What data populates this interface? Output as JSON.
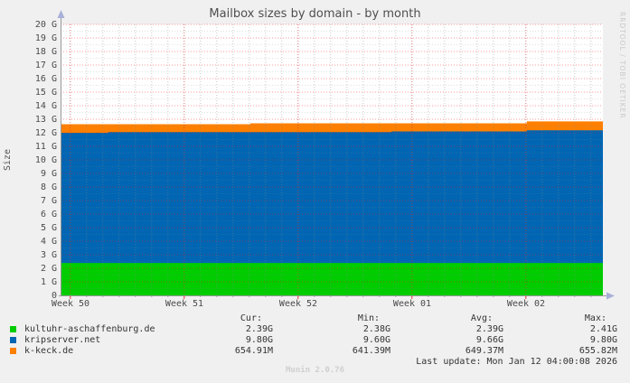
{
  "watermark": "RRDTOOL / TOBI OETIKER",
  "version": "Munin 2.0.76",
  "chart_data": {
    "type": "area",
    "stacked": true,
    "title": "Mailbox sizes by domain - by month",
    "ylabel": "Size",
    "ylim": [
      0,
      20
    ],
    "y_unit": "G",
    "grid": "on",
    "y_ticks": [
      "0",
      "1 G",
      "2 G",
      "3 G",
      "4 G",
      "5 G",
      "6 G",
      "7 G",
      "8 G",
      "9 G",
      "10 G",
      "11 G",
      "12 G",
      "13 G",
      "14 G",
      "15 G",
      "16 G",
      "17 G",
      "18 G",
      "19 G",
      "20 G"
    ],
    "x_ticks": [
      {
        "label": "Week 50",
        "pos": 0.018
      },
      {
        "label": "Week 51",
        "pos": 0.228
      },
      {
        "label": "Week 52",
        "pos": 0.438
      },
      {
        "label": "Week 01",
        "pos": 0.648
      },
      {
        "label": "Week 02",
        "pos": 0.858
      }
    ],
    "minor_x_step": 0.03,
    "series": [
      {
        "name": "kultuhr-aschaffenburg.de",
        "color": "#00cc00",
        "cum_top_steps": [
          [
            0,
            2.39
          ],
          [
            1,
            2.39
          ]
        ]
      },
      {
        "name": "kripserver.net",
        "color": "#0066b3",
        "cum_top_steps": [
          [
            0,
            11.99
          ],
          [
            0.088,
            11.99
          ],
          [
            0.088,
            12.05
          ],
          [
            0.61,
            12.05
          ],
          [
            0.61,
            12.1
          ],
          [
            0.86,
            12.1
          ],
          [
            0.86,
            12.19
          ],
          [
            1,
            12.19
          ]
        ]
      },
      {
        "name": "k-keck.de",
        "color": "#ff8000",
        "cum_top_steps": [
          [
            0,
            12.63
          ],
          [
            0.35,
            12.63
          ],
          [
            0.35,
            12.7
          ],
          [
            0.86,
            12.7
          ],
          [
            0.86,
            12.84
          ],
          [
            1,
            12.84
          ]
        ]
      }
    ],
    "legend": {
      "columns": [
        "Cur:",
        "Min:",
        "Avg:",
        "Max:"
      ],
      "rows": [
        {
          "label": "kultuhr-aschaffenburg.de",
          "color": "#00cc00",
          "values": [
            "2.39G",
            "2.38G",
            "2.39G",
            "2.41G"
          ]
        },
        {
          "label": "kripserver.net",
          "color": "#0066b3",
          "values": [
            "9.80G",
            "9.60G",
            "9.66G",
            "9.80G"
          ]
        },
        {
          "label": "k-keck.de",
          "color": "#ff8000",
          "values": [
            "654.91M",
            "641.39M",
            "649.37M",
            "655.82M"
          ]
        }
      ],
      "last_update": "Last update: Mon Jan 12 04:00:08 2026"
    }
  }
}
